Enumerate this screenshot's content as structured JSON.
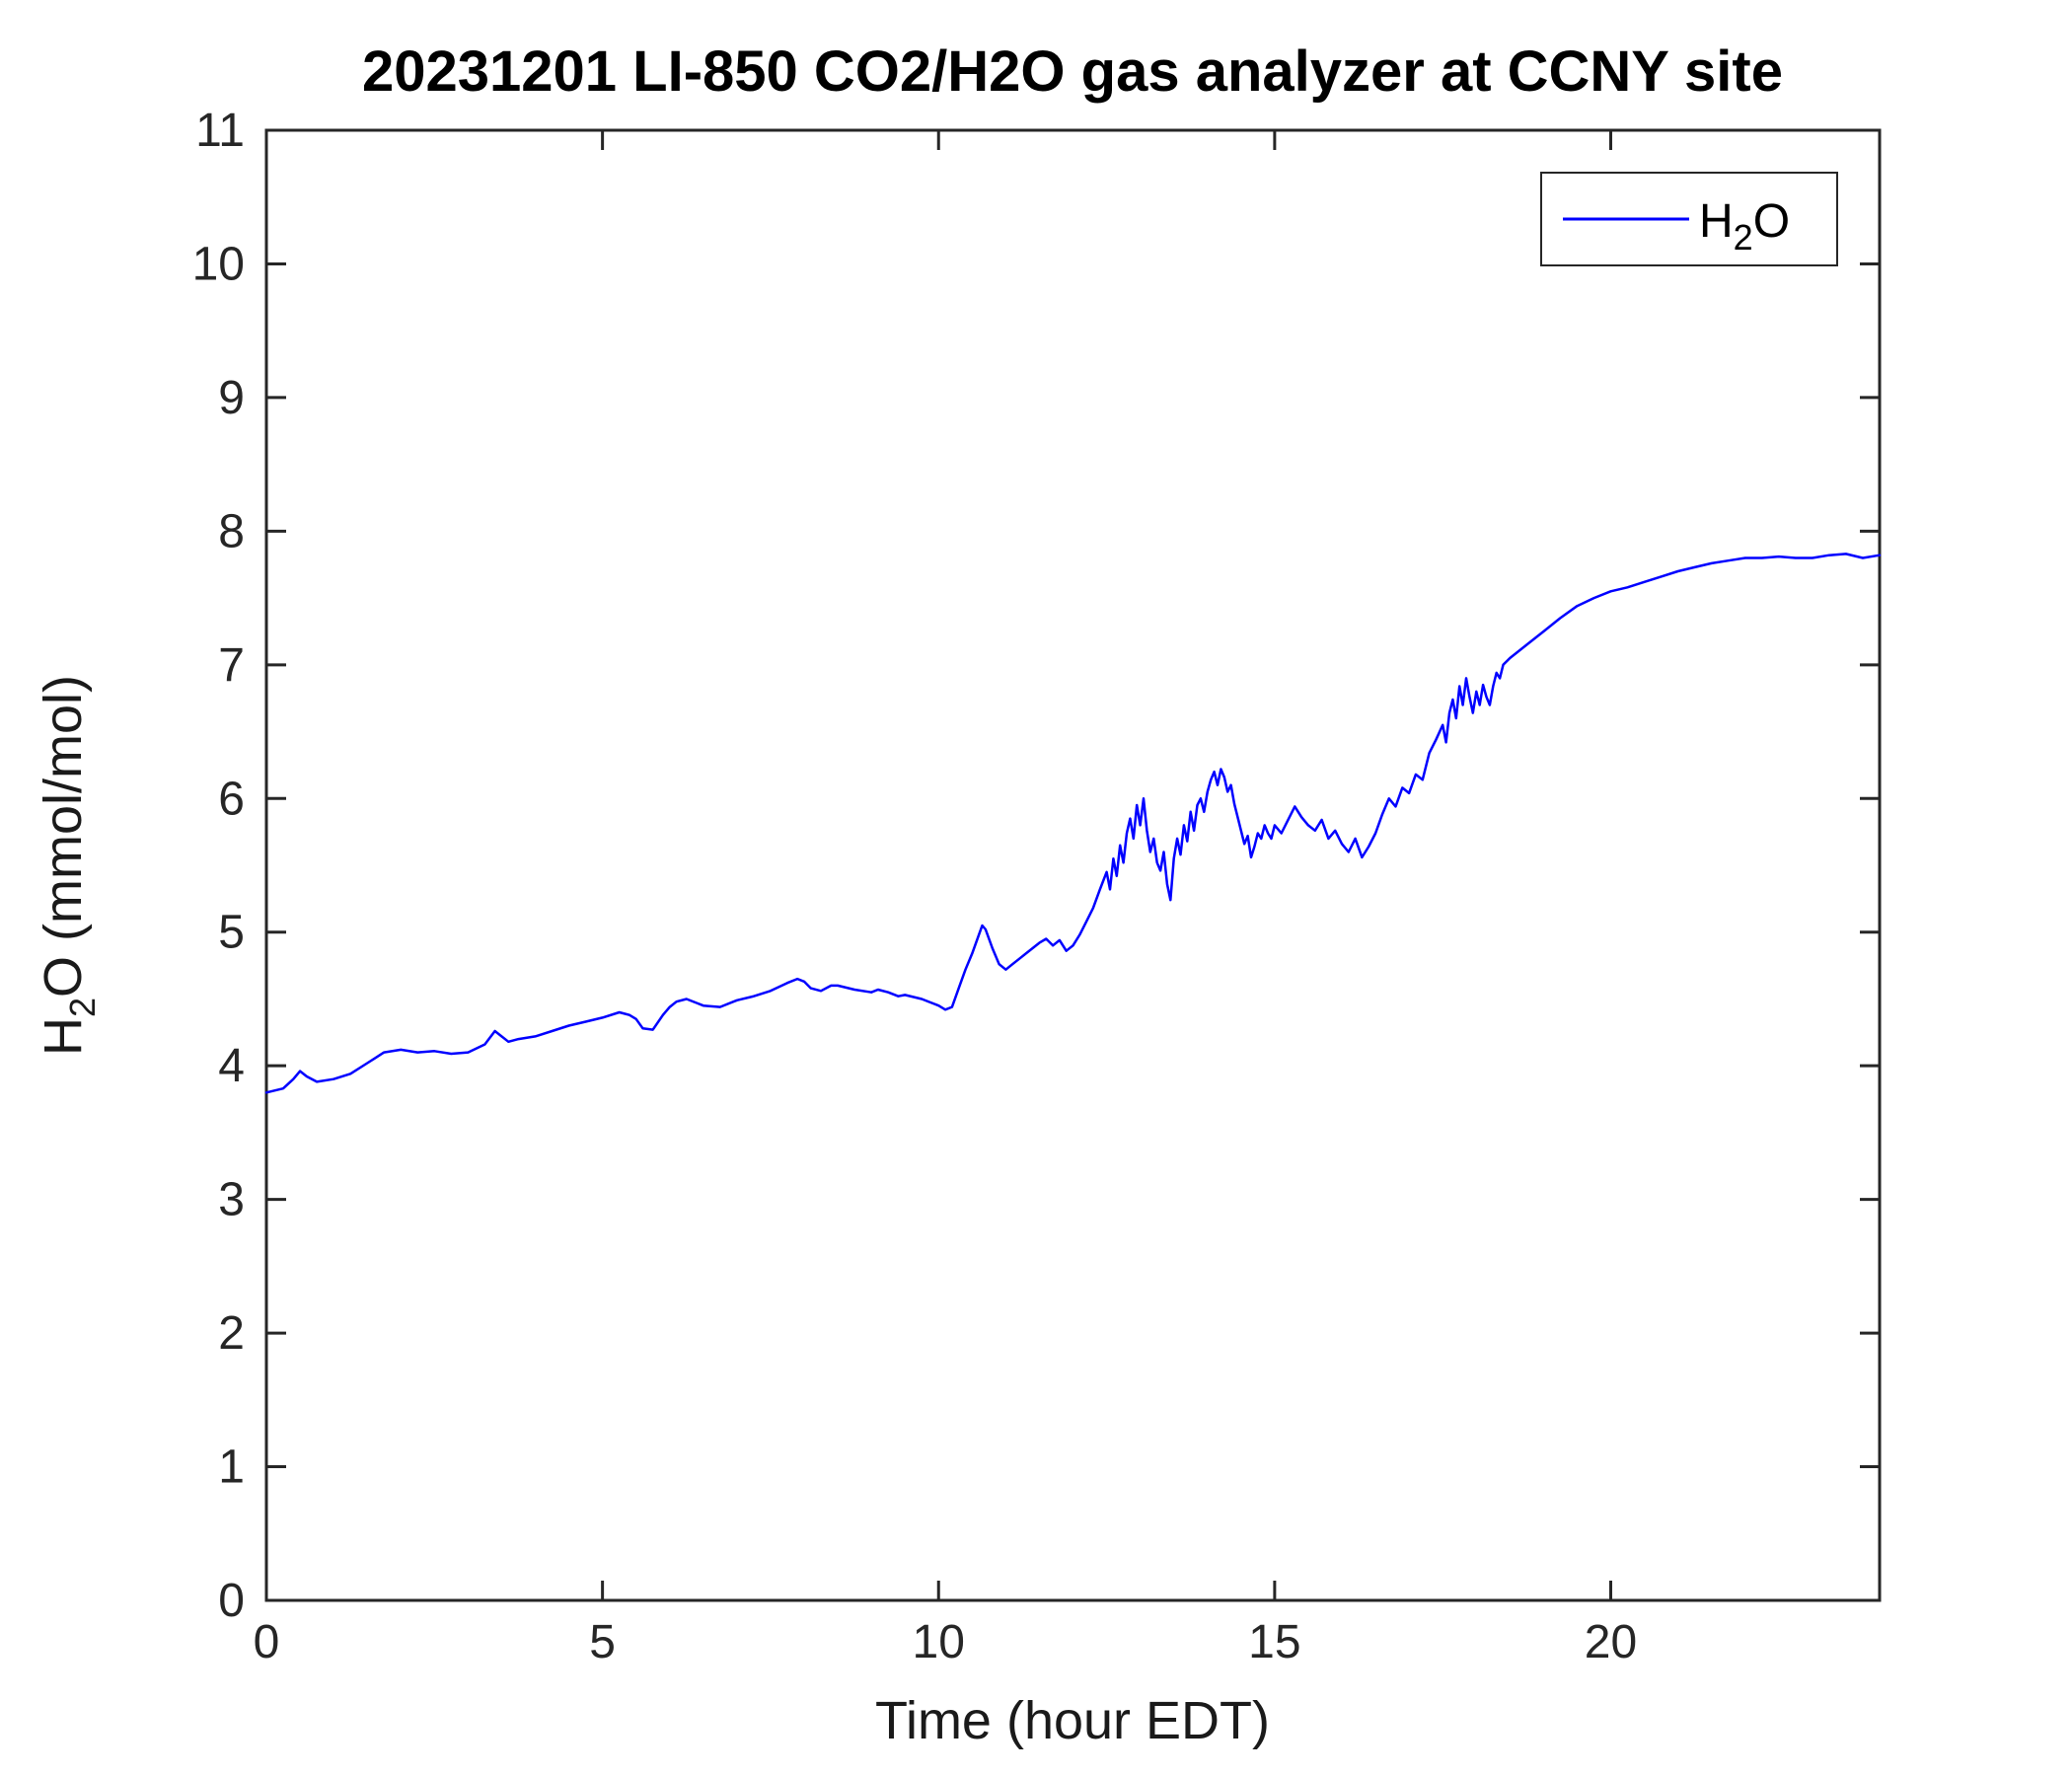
{
  "figure": {
    "background": "#ffffff",
    "axis_color": "#262626"
  },
  "axes": {
    "ylabel_parts": {
      "pre": "H",
      "sub": "2",
      "post": "O (mmol/mol)"
    }
  },
  "legend": {
    "position": "top-right",
    "entries": [
      {
        "label": "H2O",
        "label_parts": {
          "pre": "H",
          "sub": "2",
          "post": "O"
        },
        "color": "#0000ff"
      }
    ]
  },
  "chart_data": {
    "type": "line",
    "title": "20231201 LI-850 CO2/H2O gas analyzer at CCNY site",
    "xlabel": "Time (hour EDT)",
    "ylabel": "H2O (mmol/mol)",
    "xlim": [
      0,
      24
    ],
    "ylim": [
      0,
      11
    ],
    "xticks": [
      0,
      5,
      10,
      15,
      20
    ],
    "yticks": [
      0,
      1,
      2,
      3,
      4,
      5,
      6,
      7,
      8,
      9,
      10,
      11
    ],
    "grid": false,
    "legend_position": "top-right",
    "series": [
      {
        "name": "H2O",
        "color": "#0000ff",
        "points": [
          [
            0,
            3.8
          ],
          [
            0.25,
            3.83
          ],
          [
            0.4,
            3.9
          ],
          [
            0.5,
            3.96
          ],
          [
            0.6,
            3.92
          ],
          [
            0.75,
            3.88
          ],
          [
            1,
            3.9
          ],
          [
            1.25,
            3.94
          ],
          [
            1.5,
            4.02
          ],
          [
            1.75,
            4.1
          ],
          [
            2,
            4.12
          ],
          [
            2.25,
            4.1
          ],
          [
            2.5,
            4.11
          ],
          [
            2.75,
            4.09
          ],
          [
            3,
            4.1
          ],
          [
            3.25,
            4.16
          ],
          [
            3.4,
            4.26
          ],
          [
            3.5,
            4.22
          ],
          [
            3.6,
            4.18
          ],
          [
            3.75,
            4.2
          ],
          [
            4,
            4.22
          ],
          [
            4.25,
            4.26
          ],
          [
            4.5,
            4.3
          ],
          [
            4.75,
            4.33
          ],
          [
            5,
            4.36
          ],
          [
            5.25,
            4.4
          ],
          [
            5.4,
            4.38
          ],
          [
            5.5,
            4.35
          ],
          [
            5.6,
            4.28
          ],
          [
            5.75,
            4.27
          ],
          [
            5.9,
            4.38
          ],
          [
            6,
            4.44
          ],
          [
            6.1,
            4.48
          ],
          [
            6.25,
            4.5
          ],
          [
            6.4,
            4.47
          ],
          [
            6.5,
            4.45
          ],
          [
            6.75,
            4.44
          ],
          [
            7,
            4.49
          ],
          [
            7.25,
            4.52
          ],
          [
            7.5,
            4.56
          ],
          [
            7.75,
            4.62
          ],
          [
            7.9,
            4.65
          ],
          [
            8,
            4.63
          ],
          [
            8.1,
            4.58
          ],
          [
            8.25,
            4.56
          ],
          [
            8.4,
            4.6
          ],
          [
            8.5,
            4.6
          ],
          [
            8.75,
            4.57
          ],
          [
            9,
            4.55
          ],
          [
            9.1,
            4.57
          ],
          [
            9.25,
            4.55
          ],
          [
            9.4,
            4.52
          ],
          [
            9.5,
            4.53
          ],
          [
            9.75,
            4.5
          ],
          [
            9.9,
            4.47
          ],
          [
            10,
            4.45
          ],
          [
            10.1,
            4.42
          ],
          [
            10.2,
            4.44
          ],
          [
            10.3,
            4.58
          ],
          [
            10.4,
            4.72
          ],
          [
            10.5,
            4.84
          ],
          [
            10.6,
            4.98
          ],
          [
            10.65,
            5.05
          ],
          [
            10.7,
            5.02
          ],
          [
            10.8,
            4.88
          ],
          [
            10.9,
            4.76
          ],
          [
            11,
            4.72
          ],
          [
            11.1,
            4.76
          ],
          [
            11.2,
            4.8
          ],
          [
            11.3,
            4.84
          ],
          [
            11.4,
            4.88
          ],
          [
            11.5,
            4.92
          ],
          [
            11.6,
            4.95
          ],
          [
            11.7,
            4.9
          ],
          [
            11.8,
            4.94
          ],
          [
            11.9,
            4.86
          ],
          [
            12,
            4.9
          ],
          [
            12.1,
            4.98
          ],
          [
            12.2,
            5.08
          ],
          [
            12.3,
            5.18
          ],
          [
            12.4,
            5.32
          ],
          [
            12.5,
            5.45
          ],
          [
            12.55,
            5.32
          ],
          [
            12.6,
            5.55
          ],
          [
            12.65,
            5.42
          ],
          [
            12.7,
            5.65
          ],
          [
            12.75,
            5.52
          ],
          [
            12.8,
            5.74
          ],
          [
            12.85,
            5.85
          ],
          [
            12.9,
            5.7
          ],
          [
            12.95,
            5.95
          ],
          [
            13,
            5.8
          ],
          [
            13.05,
            6.0
          ],
          [
            13.1,
            5.76
          ],
          [
            13.15,
            5.6
          ],
          [
            13.2,
            5.7
          ],
          [
            13.25,
            5.52
          ],
          [
            13.3,
            5.46
          ],
          [
            13.35,
            5.6
          ],
          [
            13.4,
            5.36
          ],
          [
            13.45,
            5.24
          ],
          [
            13.5,
            5.55
          ],
          [
            13.55,
            5.7
          ],
          [
            13.6,
            5.58
          ],
          [
            13.65,
            5.8
          ],
          [
            13.7,
            5.68
          ],
          [
            13.75,
            5.9
          ],
          [
            13.8,
            5.76
          ],
          [
            13.85,
            5.95
          ],
          [
            13.9,
            6.0
          ],
          [
            13.95,
            5.9
          ],
          [
            14,
            6.05
          ],
          [
            14.05,
            6.14
          ],
          [
            14.1,
            6.2
          ],
          [
            14.15,
            6.1
          ],
          [
            14.2,
            6.22
          ],
          [
            14.25,
            6.16
          ],
          [
            14.3,
            6.05
          ],
          [
            14.35,
            6.1
          ],
          [
            14.4,
            5.96
          ],
          [
            14.45,
            5.86
          ],
          [
            14.5,
            5.76
          ],
          [
            14.55,
            5.66
          ],
          [
            14.6,
            5.72
          ],
          [
            14.65,
            5.56
          ],
          [
            14.7,
            5.64
          ],
          [
            14.75,
            5.74
          ],
          [
            14.8,
            5.7
          ],
          [
            14.85,
            5.8
          ],
          [
            14.9,
            5.74
          ],
          [
            14.95,
            5.7
          ],
          [
            15,
            5.8
          ],
          [
            15.1,
            5.74
          ],
          [
            15.2,
            5.84
          ],
          [
            15.3,
            5.94
          ],
          [
            15.4,
            5.86
          ],
          [
            15.5,
            5.8
          ],
          [
            15.6,
            5.76
          ],
          [
            15.7,
            5.84
          ],
          [
            15.8,
            5.7
          ],
          [
            15.9,
            5.76
          ],
          [
            16,
            5.66
          ],
          [
            16.1,
            5.6
          ],
          [
            16.2,
            5.7
          ],
          [
            16.3,
            5.56
          ],
          [
            16.4,
            5.64
          ],
          [
            16.5,
            5.74
          ],
          [
            16.6,
            5.88
          ],
          [
            16.7,
            6.0
          ],
          [
            16.8,
            5.94
          ],
          [
            16.9,
            6.08
          ],
          [
            17,
            6.04
          ],
          [
            17.1,
            6.18
          ],
          [
            17.2,
            6.14
          ],
          [
            17.3,
            6.34
          ],
          [
            17.4,
            6.44
          ],
          [
            17.5,
            6.55
          ],
          [
            17.55,
            6.42
          ],
          [
            17.6,
            6.64
          ],
          [
            17.65,
            6.74
          ],
          [
            17.7,
            6.6
          ],
          [
            17.75,
            6.84
          ],
          [
            17.8,
            6.7
          ],
          [
            17.85,
            6.9
          ],
          [
            17.9,
            6.76
          ],
          [
            17.95,
            6.64
          ],
          [
            18,
            6.8
          ],
          [
            18.05,
            6.7
          ],
          [
            18.1,
            6.85
          ],
          [
            18.15,
            6.76
          ],
          [
            18.2,
            6.7
          ],
          [
            18.25,
            6.84
          ],
          [
            18.3,
            6.94
          ],
          [
            18.35,
            6.9
          ],
          [
            18.4,
            7.0
          ],
          [
            18.5,
            7.05
          ],
          [
            18.75,
            7.15
          ],
          [
            19,
            7.25
          ],
          [
            19.25,
            7.35
          ],
          [
            19.5,
            7.44
          ],
          [
            19.75,
            7.5
          ],
          [
            20,
            7.55
          ],
          [
            20.25,
            7.58
          ],
          [
            20.5,
            7.62
          ],
          [
            20.75,
            7.66
          ],
          [
            21,
            7.7
          ],
          [
            21.25,
            7.73
          ],
          [
            21.5,
            7.76
          ],
          [
            21.75,
            7.78
          ],
          [
            22,
            7.8
          ],
          [
            22.25,
            7.8
          ],
          [
            22.5,
            7.81
          ],
          [
            22.75,
            7.8
          ],
          [
            23,
            7.8
          ],
          [
            23.25,
            7.82
          ],
          [
            23.5,
            7.83
          ],
          [
            23.75,
            7.8
          ],
          [
            24,
            7.82
          ]
        ]
      }
    ]
  }
}
